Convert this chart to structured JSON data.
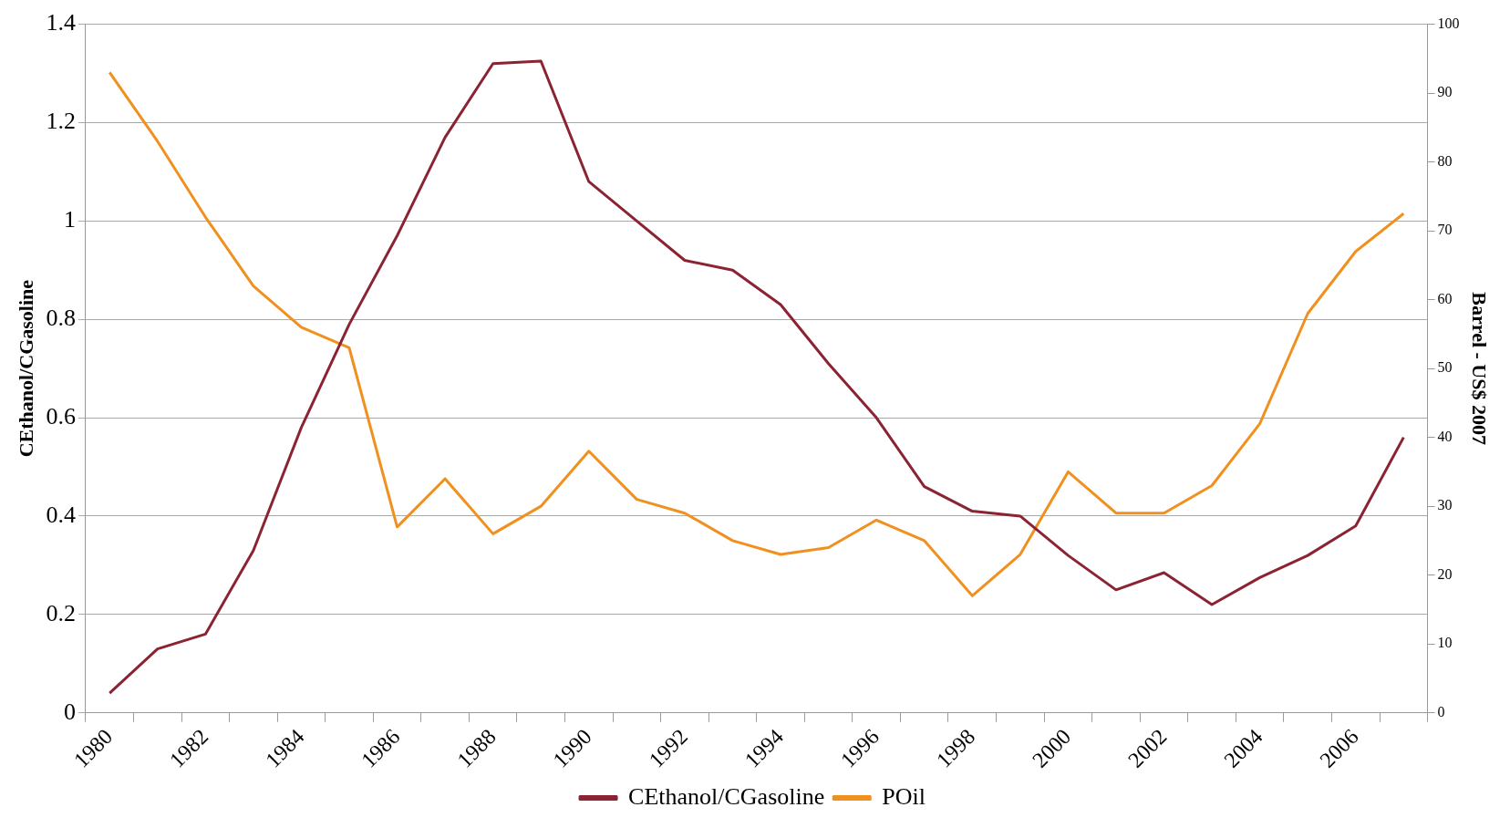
{
  "chart_data": {
    "type": "line",
    "ylabel": "CEthanol/CGasoline",
    "y2label": "Barrel - US$ 2007",
    "categories": [
      "1980",
      null,
      "1982",
      null,
      "1984",
      null,
      "1986",
      null,
      "1988",
      null,
      "1990",
      null,
      "1992",
      null,
      "1994",
      null,
      "1996",
      null,
      "1998",
      null,
      "2000",
      null,
      "2002",
      null,
      "2004",
      null,
      "2006",
      null
    ],
    "series": [
      {
        "name": "CEthanol/CGasoline",
        "color": "#8b2332",
        "values": [
          0.04,
          0.13,
          0.16,
          0.33,
          0.58,
          0.79,
          0.97,
          1.17,
          1.32,
          1.325,
          1.08,
          1.0,
          0.92,
          0.9,
          0.83,
          0.71,
          0.6,
          0.46,
          0.41,
          0.4,
          0.32,
          0.25,
          0.285,
          0.22,
          0.275,
          0.32,
          0.38,
          0.56
        ]
      },
      {
        "name": "POil",
        "color": "#f0901e",
        "axis": "y2",
        "values": [
          93,
          83,
          72,
          62,
          56,
          53,
          27,
          34,
          26,
          30,
          38,
          31,
          29,
          25,
          23,
          24,
          28,
          25,
          17,
          23,
          35,
          29,
          29,
          33,
          42,
          58,
          67,
          72.5
        ]
      }
    ],
    "ylim": [
      0,
      1.4
    ],
    "yticks": [
      0,
      0.2,
      0.4,
      0.6,
      0.8,
      1,
      1.2,
      1.4
    ],
    "y2lim": [
      0,
      100
    ],
    "y2ticks": [
      0,
      10,
      20,
      30,
      40,
      50,
      60,
      70,
      80,
      90,
      100
    ],
    "grid": "y",
    "legend": "bottom",
    "marker": "none",
    "line_style": "solid"
  }
}
